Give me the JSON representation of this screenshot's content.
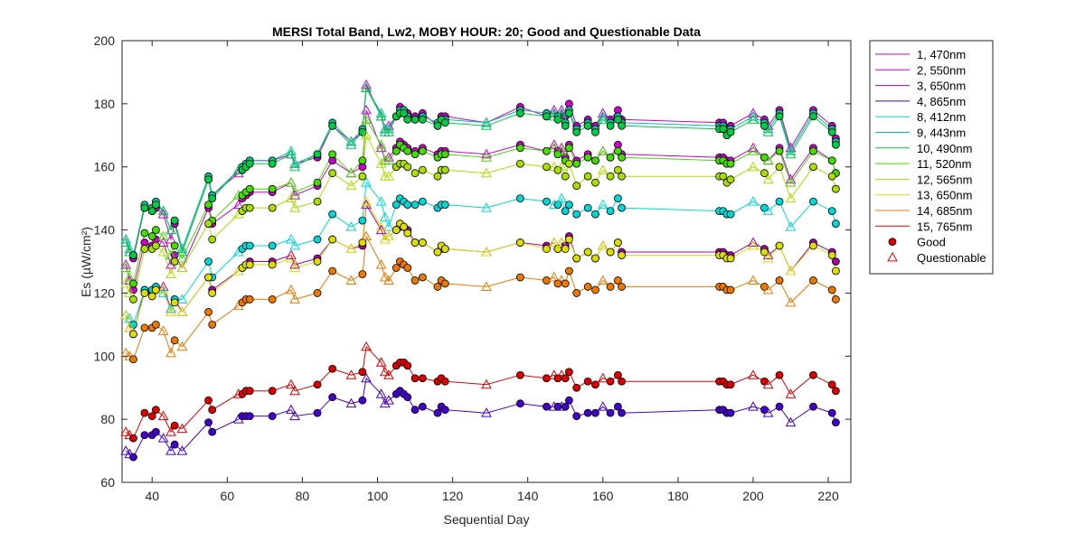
{
  "chart_data": {
    "type": "line",
    "title": "MERSI Total Band,  Lw2, MOBY HOUR: 20;  Good and Questionable Data",
    "xlabel": "Sequential Day",
    "ylabel": "Es (µW/cm²)",
    "xlim": [
      32,
      226
    ],
    "ylim": [
      60,
      200
    ],
    "xticks": [
      40,
      60,
      80,
      100,
      120,
      140,
      160,
      180,
      200,
      220
    ],
    "yticks": [
      60,
      80,
      100,
      120,
      140,
      160,
      180,
      200
    ],
    "grid": false,
    "legend_placement": "outside-right",
    "x": [
      33,
      34,
      35,
      38,
      40,
      41,
      43,
      45,
      46,
      48,
      55,
      56,
      63,
      64,
      65,
      66,
      72,
      77,
      78,
      84,
      88,
      93,
      96,
      97,
      101,
      102,
      103,
      105,
      106,
      107,
      108,
      110,
      112,
      116,
      117,
      118,
      129,
      138,
      145,
      147,
      148,
      149,
      150,
      151,
      153,
      156,
      158,
      160,
      162,
      164,
      165,
      191,
      192,
      193,
      194,
      200,
      203,
      204,
      207,
      210,
      216,
      221,
      222
    ],
    "q_flags": [
      1,
      1,
      0,
      0,
      0,
      0,
      1,
      1,
      0,
      1,
      0,
      0,
      1,
      0,
      0,
      0,
      0,
      1,
      1,
      0,
      0,
      1,
      0,
      1,
      1,
      1,
      1,
      0,
      0,
      0,
      0,
      0,
      0,
      0,
      0,
      0,
      1,
      0,
      0,
      1,
      0,
      1,
      0,
      0,
      0,
      0,
      0,
      1,
      0,
      0,
      0,
      0,
      0,
      0,
      0,
      1,
      0,
      1,
      0,
      1,
      0,
      0,
      0
    ],
    "series": [
      {
        "name": "1, 470nm",
        "color": "#cc00cc",
        "values": [
          137,
          133,
          131,
          147,
          146,
          147,
          145,
          137,
          142,
          133,
          156,
          151,
          158,
          160,
          161,
          162,
          162,
          164,
          161,
          163,
          173,
          168,
          171,
          186,
          176,
          172,
          173,
          176,
          179,
          178,
          177,
          176,
          177,
          173,
          176,
          176,
          174,
          179,
          176,
          178,
          176,
          178,
          176,
          180,
          173,
          175,
          173,
          177,
          175,
          178,
          175,
          174,
          174,
          172,
          173,
          177,
          175,
          173,
          178,
          166,
          178,
          173,
          169
        ]
      },
      {
        "name": "2, 550nm",
        "color": "#cc00cc",
        "values": [
          129,
          124,
          121,
          136,
          135,
          137,
          136,
          129,
          132,
          128,
          147,
          142,
          148,
          150,
          151,
          152,
          152,
          155,
          151,
          154,
          162,
          158,
          160,
          178,
          166,
          162,
          163,
          166,
          168,
          167,
          166,
          165,
          166,
          164,
          165,
          165,
          164,
          167,
          165,
          167,
          165,
          166,
          163,
          167,
          162,
          164,
          162,
          165,
          163,
          167,
          164,
          163,
          163,
          162,
          162,
          166,
          163,
          162,
          166,
          156,
          166,
          162,
          158
        ]
      },
      {
        "name": "3, 650nm",
        "color": "#aa00aa",
        "values": [
          113,
          109,
          107,
          121,
          120,
          121,
          122,
          115,
          118,
          114,
          125,
          121,
          127,
          128,
          129,
          130,
          130,
          132,
          129,
          131,
          137,
          134,
          135,
          148,
          140,
          137,
          138,
          140,
          141,
          141,
          140,
          136,
          136,
          133,
          134,
          134,
          133,
          136,
          135,
          136,
          134,
          136,
          135,
          138,
          131,
          133,
          131,
          135,
          133,
          136,
          133,
          133,
          133,
          132,
          132,
          136,
          134,
          132,
          135,
          127,
          136,
          133,
          130
        ]
      },
      {
        "name": "4, 865nm",
        "color": "#4400cc",
        "values": [
          70,
          69,
          68,
          75,
          75,
          76,
          74,
          70,
          72,
          70,
          79,
          76,
          80,
          81,
          81,
          81,
          81,
          83,
          81,
          82,
          87,
          85,
          86,
          93,
          88,
          85,
          86,
          88,
          89,
          88,
          87,
          83,
          84,
          82,
          84,
          83,
          82,
          85,
          84,
          84,
          84,
          84,
          84,
          86,
          81,
          82,
          82,
          84,
          82,
          84,
          82,
          83,
          83,
          82,
          82,
          84,
          83,
          82,
          84,
          79,
          84,
          82,
          79
        ]
      },
      {
        "name": "8, 412nm",
        "color": "#00d8d8",
        "values": [
          113,
          112,
          110,
          121,
          121,
          122,
          120,
          115,
          118,
          118,
          130,
          125,
          133,
          134,
          135,
          135,
          135,
          137,
          135,
          137,
          145,
          141,
          143,
          155,
          149,
          144,
          141,
          148,
          150,
          149,
          148,
          148,
          149,
          147,
          148,
          148,
          147,
          150,
          149,
          148,
          148,
          150,
          146,
          148,
          145,
          147,
          145,
          148,
          146,
          150,
          147,
          146,
          146,
          145,
          145,
          149,
          147,
          146,
          149,
          141,
          149,
          146,
          142
        ]
      },
      {
        "name": "9, 443nm",
        "color": "#00c4a0",
        "values": [
          137,
          134,
          132,
          148,
          147,
          149,
          146,
          140,
          143,
          134,
          157,
          151,
          159,
          160,
          161,
          162,
          162,
          165,
          161,
          164,
          174,
          168,
          172,
          185,
          177,
          172,
          172,
          176,
          178,
          178,
          176,
          175,
          176,
          174,
          175,
          175,
          174,
          178,
          177,
          177,
          176,
          177,
          174,
          178,
          172,
          174,
          172,
          176,
          174,
          176,
          174,
          173,
          173,
          171,
          172,
          176,
          174,
          172,
          177,
          165,
          177,
          172,
          168
        ]
      },
      {
        "name": "10, 490nm",
        "color": "#00cc44",
        "values": [
          136,
          133,
          132,
          147,
          146,
          148,
          146,
          140,
          143,
          133,
          156,
          150,
          159,
          159,
          160,
          161,
          161,
          164,
          160,
          164,
          173,
          167,
          171,
          185,
          176,
          171,
          171,
          176,
          177,
          177,
          175,
          175,
          175,
          173,
          175,
          174,
          173,
          177,
          176,
          176,
          175,
          176,
          173,
          177,
          171,
          173,
          171,
          175,
          173,
          175,
          173,
          172,
          172,
          170,
          171,
          175,
          173,
          171,
          176,
          164,
          176,
          171,
          167
        ]
      },
      {
        "name": "11, 520nm",
        "color": "#44dd00",
        "values": [
          128,
          125,
          123,
          139,
          138,
          140,
          138,
          132,
          135,
          131,
          148,
          143,
          151,
          151,
          152,
          153,
          153,
          155,
          152,
          155,
          164,
          158,
          162,
          175,
          167,
          162,
          162,
          165,
          167,
          166,
          165,
          164,
          165,
          163,
          164,
          164,
          163,
          166,
          165,
          166,
          164,
          165,
          162,
          166,
          161,
          163,
          162,
          165,
          163,
          165,
          163,
          162,
          162,
          161,
          161,
          165,
          163,
          162,
          165,
          155,
          165,
          162,
          158
        ]
      },
      {
        "name": "12, 565nm",
        "color": "#aadd00",
        "values": [
          123,
          120,
          118,
          134,
          134,
          135,
          133,
          126,
          130,
          128,
          142,
          137,
          145,
          146,
          147,
          147,
          147,
          150,
          147,
          149,
          158,
          154,
          157,
          170,
          161,
          157,
          157,
          160,
          161,
          161,
          160,
          158,
          159,
          157,
          159,
          159,
          158,
          161,
          160,
          160,
          159,
          160,
          157,
          161,
          154,
          157,
          155,
          159,
          157,
          159,
          157,
          157,
          157,
          155,
          156,
          160,
          158,
          156,
          160,
          150,
          160,
          157,
          153
        ]
      },
      {
        "name": "13, 650nm",
        "color": "#dddd00",
        "values": [
          113,
          109,
          107,
          120,
          119,
          121,
          121,
          114,
          117,
          114,
          125,
          120,
          127,
          128,
          129,
          129,
          129,
          131,
          128,
          130,
          137,
          134,
          136,
          149,
          141,
          137,
          138,
          140,
          142,
          141,
          139,
          136,
          136,
          133,
          135,
          134,
          133,
          136,
          134,
          136,
          134,
          136,
          134,
          137,
          131,
          133,
          131,
          135,
          133,
          136,
          132,
          132,
          132,
          131,
          131,
          135,
          133,
          131,
          135,
          127,
          135,
          132,
          127
        ]
      },
      {
        "name": "14, 685nm",
        "color": "#ee7700",
        "values": [
          101,
          100,
          99,
          109,
          109,
          110,
          108,
          101,
          105,
          103,
          114,
          110,
          116,
          117,
          118,
          118,
          118,
          121,
          118,
          120,
          127,
          124,
          126,
          138,
          129,
          125,
          124,
          128,
          130,
          129,
          128,
          124,
          125,
          122,
          124,
          123,
          122,
          125,
          124,
          125,
          123,
          124,
          123,
          127,
          120,
          122,
          121,
          124,
          122,
          124,
          122,
          122,
          122,
          121,
          121,
          124,
          122,
          121,
          124,
          117,
          124,
          121,
          118
        ]
      },
      {
        "name": "15, 765nm",
        "color": "#dd0000",
        "values": [
          76,
          75,
          74,
          82,
          81,
          83,
          81,
          76,
          78,
          77,
          86,
          83,
          88,
          88,
          89,
          89,
          89,
          91,
          89,
          91,
          96,
          94,
          95,
          103,
          98,
          95,
          94,
          97,
          98,
          98,
          97,
          93,
          93,
          92,
          93,
          92,
          91,
          94,
          93,
          94,
          93,
          94,
          93,
          95,
          90,
          92,
          91,
          93,
          92,
          94,
          92,
          92,
          92,
          91,
          91,
          94,
          92,
          91,
          94,
          88,
          94,
          91,
          89
        ]
      }
    ],
    "legend_markers": [
      {
        "name": "Good",
        "marker": "circle",
        "color": "#dd0000"
      },
      {
        "name": "Questionable",
        "marker": "triangle",
        "color": "#dd0000"
      }
    ]
  }
}
